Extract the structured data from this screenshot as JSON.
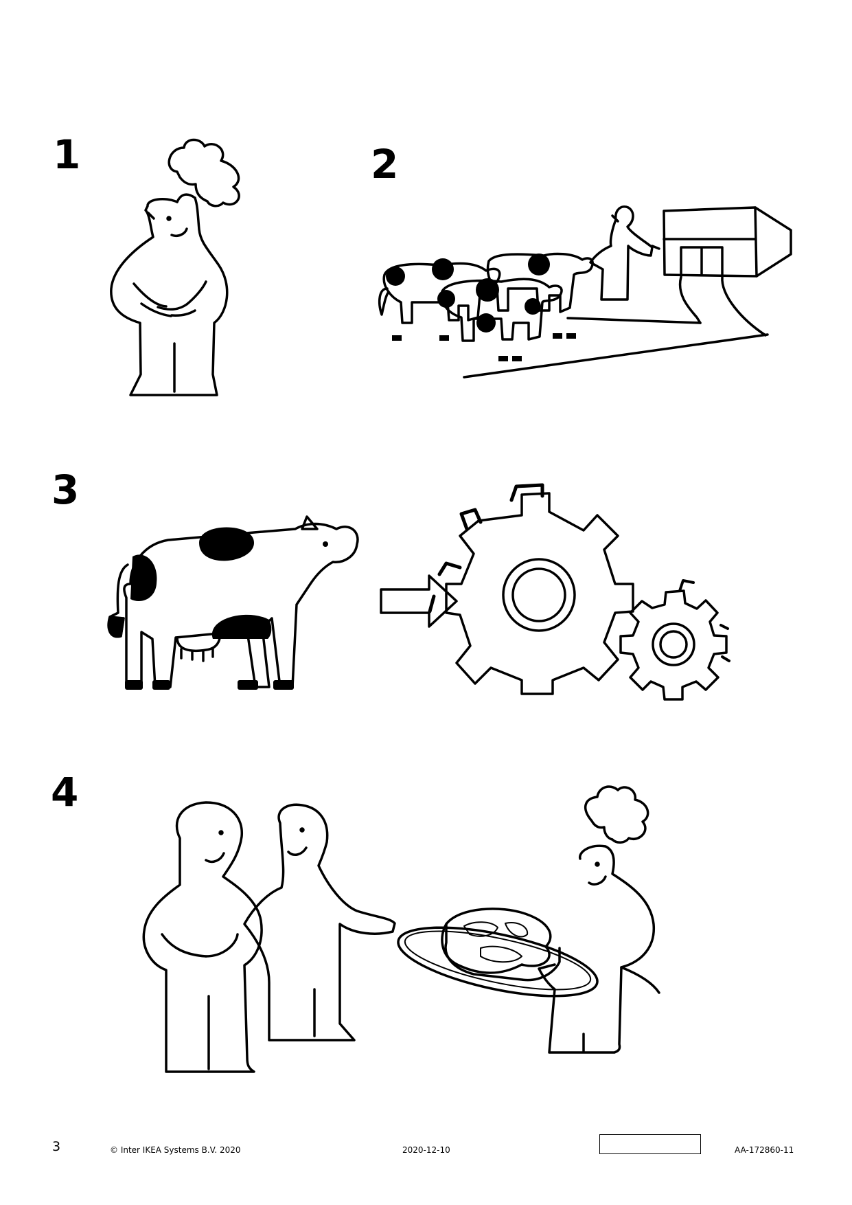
{
  "steps": [
    {
      "number": "1",
      "description": "Chef standing with hands on belly"
    },
    {
      "number": "2",
      "description": "Cows walking towards a building, person waving"
    },
    {
      "number": "3",
      "description": "Cow fed into gears"
    },
    {
      "number": "4",
      "description": "Two people receiving a steak from a chef"
    }
  ],
  "footer": {
    "page_number": "3",
    "copyright": "© Inter IKEA Systems B.V. 2020",
    "date": "2020-12-10",
    "article_code": "AA-172860-11"
  },
  "colors": {
    "ink": "#000000",
    "paper": "#ffffff"
  }
}
